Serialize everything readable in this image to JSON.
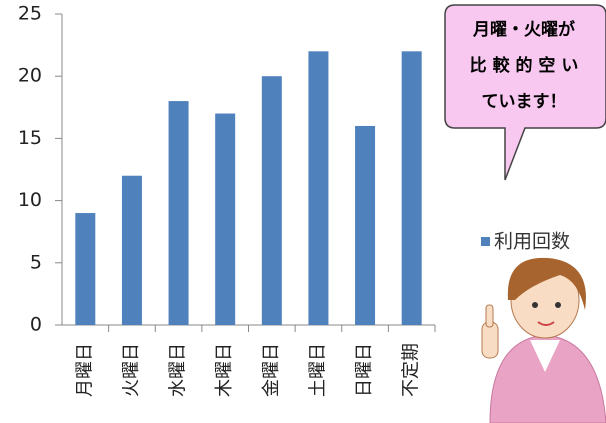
{
  "chart_data": {
    "type": "bar",
    "categories": [
      "月曜日",
      "火曜日",
      "水曜日",
      "木曜日",
      "金曜日",
      "土曜日",
      "日曜日",
      "不定期"
    ],
    "series": [
      {
        "name": "利用回数",
        "color": "#4f81bd",
        "values": [
          9,
          12,
          18,
          17,
          20,
          22,
          16,
          22
        ]
      }
    ],
    "ylim": [
      0,
      25
    ],
    "yticks": [
      0,
      5,
      10,
      15,
      20,
      25
    ],
    "legend": "right"
  },
  "callout": {
    "lines": [
      "月曜・火曜が",
      "比 較 的 空 い",
      "ています！"
    ]
  }
}
